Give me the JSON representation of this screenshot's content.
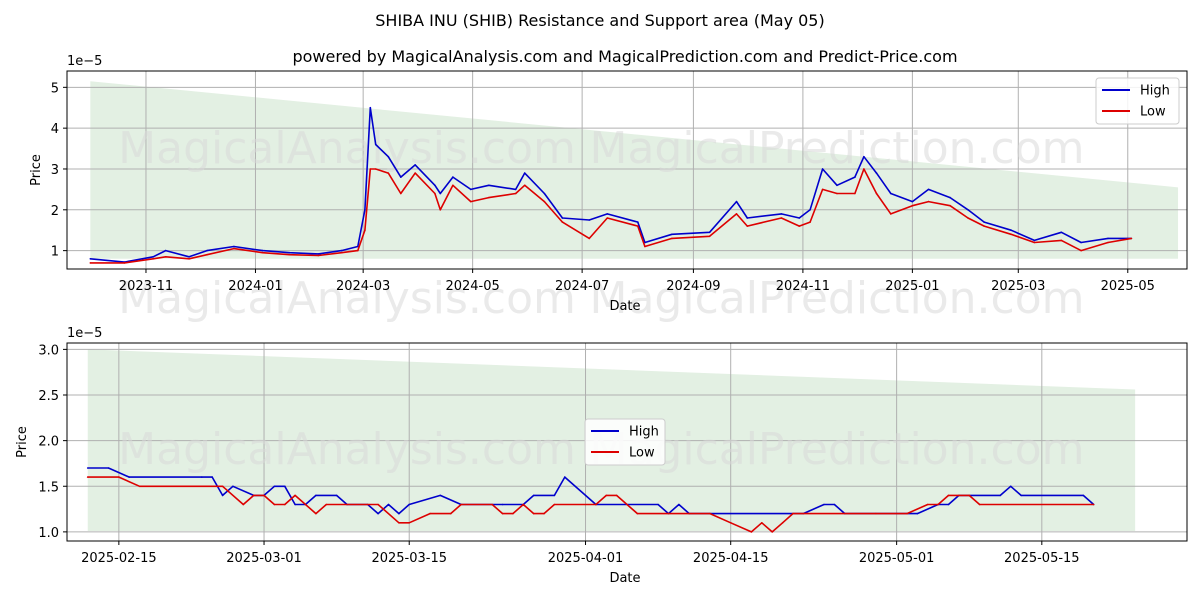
{
  "title": "SHIBA INU (SHIB) Resistance and Support area (May 05)",
  "subtitle": "powered by MagicalAnalysis.com and MagicalPrediction.com and Predict-Price.com",
  "watermark_left": "MagicalAnalysis.com",
  "watermark_right": "MagicalPrediction.com",
  "colors": {
    "high": "#0000cc",
    "low": "#dd0000",
    "band": "#e3f0e3",
    "grid": "#b0b0b0"
  },
  "chart_data": [
    {
      "type": "line",
      "name": "full-period",
      "xlabel": "Date",
      "ylabel": "Price",
      "scale_label": "1e−5",
      "x_start": "2023-10-01",
      "x_end": "2025-05-29",
      "xlim": [
        "2023-09-18",
        "2025-06-03"
      ],
      "ylim": [
        0.55,
        5.4
      ],
      "yticks": [
        1,
        2,
        3,
        4,
        5
      ],
      "yticklabels": [
        "1",
        "2",
        "3",
        "4",
        "5"
      ],
      "xticks": [
        "2023-11-01",
        "2024-01-01",
        "2024-03-01",
        "2024-05-01",
        "2024-07-01",
        "2024-09-01",
        "2024-11-01",
        "2025-01-01",
        "2025-03-01",
        "2025-05-01"
      ],
      "xticklabels": [
        "2023-11",
        "2024-01",
        "2024-03",
        "2024-05",
        "2024-07",
        "2024-09",
        "2024-11",
        "2025-01",
        "2025-03",
        "2025-05"
      ],
      "band": {
        "x_start": "2023-10-01",
        "x_end": "2025-05-29",
        "upper_start": 5.15,
        "upper_end": 2.55,
        "lower": 0.8
      },
      "legend": {
        "position": "top-right",
        "entries": [
          "High",
          "Low"
        ]
      },
      "series": [
        {
          "name": "High",
          "color": "#0000cc",
          "points": [
            [
              "2023-10-01",
              0.8
            ],
            [
              "2023-10-20",
              0.72
            ],
            [
              "2023-11-05",
              0.85
            ],
            [
              "2023-11-12",
              1.0
            ],
            [
              "2023-11-25",
              0.85
            ],
            [
              "2023-12-05",
              1.0
            ],
            [
              "2023-12-20",
              1.1
            ],
            [
              "2024-01-05",
              1.0
            ],
            [
              "2024-01-20",
              0.95
            ],
            [
              "2024-02-05",
              0.92
            ],
            [
              "2024-02-18",
              1.0
            ],
            [
              "2024-02-27",
              1.1
            ],
            [
              "2024-03-02",
              2.0
            ],
            [
              "2024-03-05",
              4.5
            ],
            [
              "2024-03-08",
              3.6
            ],
            [
              "2024-03-15",
              3.3
            ],
            [
              "2024-03-22",
              2.8
            ],
            [
              "2024-03-30",
              3.1
            ],
            [
              "2024-04-10",
              2.6
            ],
            [
              "2024-04-13",
              2.4
            ],
            [
              "2024-04-20",
              2.8
            ],
            [
              "2024-04-30",
              2.5
            ],
            [
              "2024-05-10",
              2.6
            ],
            [
              "2024-05-25",
              2.5
            ],
            [
              "2024-05-30",
              2.9
            ],
            [
              "2024-06-10",
              2.4
            ],
            [
              "2024-06-20",
              1.8
            ],
            [
              "2024-07-05",
              1.75
            ],
            [
              "2024-07-15",
              1.9
            ],
            [
              "2024-08-01",
              1.7
            ],
            [
              "2024-08-05",
              1.2
            ],
            [
              "2024-08-20",
              1.4
            ],
            [
              "2024-09-10",
              1.45
            ],
            [
              "2024-09-25",
              2.2
            ],
            [
              "2024-10-01",
              1.8
            ],
            [
              "2024-10-20",
              1.9
            ],
            [
              "2024-10-30",
              1.8
            ],
            [
              "2024-11-05",
              2.0
            ],
            [
              "2024-11-12",
              3.0
            ],
            [
              "2024-11-20",
              2.6
            ],
            [
              "2024-11-30",
              2.8
            ],
            [
              "2024-12-05",
              3.3
            ],
            [
              "2024-12-12",
              2.9
            ],
            [
              "2024-12-20",
              2.4
            ],
            [
              "2025-01-01",
              2.2
            ],
            [
              "2025-01-10",
              2.5
            ],
            [
              "2025-01-22",
              2.3
            ],
            [
              "2025-02-01",
              2.0
            ],
            [
              "2025-02-10",
              1.7
            ],
            [
              "2025-02-25",
              1.5
            ],
            [
              "2025-03-10",
              1.25
            ],
            [
              "2025-03-25",
              1.45
            ],
            [
              "2025-04-05",
              1.2
            ],
            [
              "2025-04-20",
              1.3
            ],
            [
              "2025-05-03",
              1.3
            ]
          ]
        },
        {
          "name": "Low",
          "color": "#dd0000",
          "points": [
            [
              "2023-10-01",
              0.7
            ],
            [
              "2023-10-20",
              0.7
            ],
            [
              "2023-11-05",
              0.8
            ],
            [
              "2023-11-12",
              0.85
            ],
            [
              "2023-11-25",
              0.8
            ],
            [
              "2023-12-05",
              0.9
            ],
            [
              "2023-12-20",
              1.05
            ],
            [
              "2024-01-05",
              0.95
            ],
            [
              "2024-01-20",
              0.9
            ],
            [
              "2024-02-05",
              0.88
            ],
            [
              "2024-02-18",
              0.95
            ],
            [
              "2024-02-27",
              1.0
            ],
            [
              "2024-03-02",
              1.5
            ],
            [
              "2024-03-05",
              3.0
            ],
            [
              "2024-03-08",
              3.0
            ],
            [
              "2024-03-15",
              2.9
            ],
            [
              "2024-03-22",
              2.4
            ],
            [
              "2024-03-30",
              2.9
            ],
            [
              "2024-04-10",
              2.4
            ],
            [
              "2024-04-13",
              2.0
            ],
            [
              "2024-04-20",
              2.6
            ],
            [
              "2024-04-30",
              2.2
            ],
            [
              "2024-05-10",
              2.3
            ],
            [
              "2024-05-25",
              2.4
            ],
            [
              "2024-05-30",
              2.6
            ],
            [
              "2024-06-10",
              2.2
            ],
            [
              "2024-06-20",
              1.7
            ],
            [
              "2024-07-05",
              1.3
            ],
            [
              "2024-07-15",
              1.8
            ],
            [
              "2024-08-01",
              1.6
            ],
            [
              "2024-08-05",
              1.1
            ],
            [
              "2024-08-20",
              1.3
            ],
            [
              "2024-09-10",
              1.35
            ],
            [
              "2024-09-25",
              1.9
            ],
            [
              "2024-10-01",
              1.6
            ],
            [
              "2024-10-20",
              1.8
            ],
            [
              "2024-10-30",
              1.6
            ],
            [
              "2024-11-05",
              1.7
            ],
            [
              "2024-11-12",
              2.5
            ],
            [
              "2024-11-20",
              2.4
            ],
            [
              "2024-11-30",
              2.4
            ],
            [
              "2024-12-05",
              3.0
            ],
            [
              "2024-12-12",
              2.4
            ],
            [
              "2024-12-20",
              1.9
            ],
            [
              "2025-01-01",
              2.1
            ],
            [
              "2025-01-10",
              2.2
            ],
            [
              "2025-01-22",
              2.1
            ],
            [
              "2025-02-01",
              1.8
            ],
            [
              "2025-02-10",
              1.6
            ],
            [
              "2025-02-25",
              1.4
            ],
            [
              "2025-03-10",
              1.2
            ],
            [
              "2025-03-25",
              1.25
            ],
            [
              "2025-04-05",
              1.0
            ],
            [
              "2025-04-20",
              1.2
            ],
            [
              "2025-05-03",
              1.3
            ]
          ]
        }
      ]
    },
    {
      "type": "line",
      "name": "recent-period",
      "xlabel": "Date",
      "ylabel": "Price",
      "scale_label": "1e−5",
      "xlim": [
        "2025-02-10",
        "2025-05-29"
      ],
      "ylim": [
        0.9,
        3.07
      ],
      "yticks": [
        1.0,
        1.5,
        2.0,
        2.5,
        3.0
      ],
      "yticklabels": [
        "1.0",
        "1.5",
        "2.0",
        "2.5",
        "3.0"
      ],
      "xticks": [
        "2025-02-15",
        "2025-03-01",
        "2025-03-15",
        "2025-04-01",
        "2025-04-15",
        "2025-05-01",
        "2025-05-15"
      ],
      "xticklabels": [
        "2025-02-15",
        "2025-03-01",
        "2025-03-15",
        "2025-04-01",
        "2025-04-15",
        "2025-05-01",
        "2025-05-15"
      ],
      "band": {
        "x_start": "2025-02-12",
        "x_end": "2025-05-24",
        "upper_start": 3.0,
        "upper_end": 2.56,
        "lower": 1.01
      },
      "legend": {
        "position": "center",
        "entries": [
          "High",
          "Low"
        ]
      },
      "series": [
        {
          "name": "High",
          "color": "#0000cc",
          "points": [
            [
              "2025-02-12",
              1.7
            ],
            [
              "2025-02-14",
              1.7
            ],
            [
              "2025-02-16",
              1.6
            ],
            [
              "2025-02-23",
              1.6
            ],
            [
              "2025-02-24",
              1.6
            ],
            [
              "2025-02-25",
              1.4
            ],
            [
              "2025-02-26",
              1.5
            ],
            [
              "2025-02-28",
              1.4
            ],
            [
              "2025-02-29",
              1.4
            ],
            [
              "2025-03-02",
              1.5
            ],
            [
              "2025-03-03",
              1.5
            ],
            [
              "2025-03-04",
              1.3
            ],
            [
              "2025-03-05",
              1.3
            ],
            [
              "2025-03-06",
              1.4
            ],
            [
              "2025-03-08",
              1.4
            ],
            [
              "2025-03-09",
              1.3
            ],
            [
              "2025-03-11",
              1.3
            ],
            [
              "2025-03-12",
              1.2
            ],
            [
              "2025-03-13",
              1.3
            ],
            [
              "2025-03-14",
              1.2
            ],
            [
              "2025-03-15",
              1.3
            ],
            [
              "2025-03-18",
              1.4
            ],
            [
              "2025-03-20",
              1.3
            ],
            [
              "2025-03-24",
              1.3
            ],
            [
              "2025-03-26",
              1.3
            ],
            [
              "2025-03-27",
              1.4
            ],
            [
              "2025-03-29",
              1.4
            ],
            [
              "2025-03-30",
              1.6
            ],
            [
              "2025-04-02",
              1.3
            ],
            [
              "2025-04-08",
              1.3
            ],
            [
              "2025-04-09",
              1.2
            ],
            [
              "2025-04-10",
              1.3
            ],
            [
              "2025-04-11",
              1.2
            ],
            [
              "2025-04-22",
              1.2
            ],
            [
              "2025-04-24",
              1.3
            ],
            [
              "2025-04-25",
              1.3
            ],
            [
              "2025-04-26",
              1.2
            ],
            [
              "2025-05-03",
              1.2
            ],
            [
              "2025-05-05",
              1.3
            ],
            [
              "2025-05-06",
              1.3
            ],
            [
              "2025-05-07",
              1.4
            ],
            [
              "2025-05-11",
              1.4
            ],
            [
              "2025-05-12",
              1.5
            ],
            [
              "2025-05-13",
              1.4
            ],
            [
              "2025-05-19",
              1.4
            ],
            [
              "2025-05-20",
              1.3
            ]
          ]
        },
        {
          "name": "Low",
          "color": "#dd0000",
          "points": [
            [
              "2025-02-12",
              1.6
            ],
            [
              "2025-02-15",
              1.6
            ],
            [
              "2025-02-17",
              1.5
            ],
            [
              "2025-02-25",
              1.5
            ],
            [
              "2025-02-27",
              1.3
            ],
            [
              "2025-02-28",
              1.4
            ],
            [
              "2025-02-29",
              1.4
            ],
            [
              "2025-03-02",
              1.3
            ],
            [
              "2025-03-03",
              1.3
            ],
            [
              "2025-03-04",
              1.4
            ],
            [
              "2025-03-06",
              1.2
            ],
            [
              "2025-03-07",
              1.3
            ],
            [
              "2025-03-12",
              1.3
            ],
            [
              "2025-03-14",
              1.1
            ],
            [
              "2025-03-15",
              1.1
            ],
            [
              "2025-03-17",
              1.2
            ],
            [
              "2025-03-19",
              1.2
            ],
            [
              "2025-03-20",
              1.3
            ],
            [
              "2025-03-23",
              1.3
            ],
            [
              "2025-03-24",
              1.2
            ],
            [
              "2025-03-25",
              1.2
            ],
            [
              "2025-03-26",
              1.3
            ],
            [
              "2025-03-27",
              1.2
            ],
            [
              "2025-03-28",
              1.2
            ],
            [
              "2025-03-29",
              1.3
            ],
            [
              "2025-04-02",
              1.3
            ],
            [
              "2025-04-03",
              1.4
            ],
            [
              "2025-04-04",
              1.4
            ],
            [
              "2025-04-06",
              1.2
            ],
            [
              "2025-04-13",
              1.2
            ],
            [
              "2025-04-15",
              1.1
            ],
            [
              "2025-04-17",
              1.0
            ],
            [
              "2025-04-18",
              1.1
            ],
            [
              "2025-04-19",
              1.0
            ],
            [
              "2025-04-20",
              1.1
            ],
            [
              "2025-04-21",
              1.2
            ],
            [
              "2025-04-29",
              1.2
            ],
            [
              "2025-05-02",
              1.2
            ],
            [
              "2025-05-04",
              1.3
            ],
            [
              "2025-05-05",
              1.3
            ],
            [
              "2025-05-06",
              1.4
            ],
            [
              "2025-05-08",
              1.4
            ],
            [
              "2025-05-09",
              1.3
            ],
            [
              "2025-05-20",
              1.3
            ]
          ]
        }
      ]
    }
  ]
}
